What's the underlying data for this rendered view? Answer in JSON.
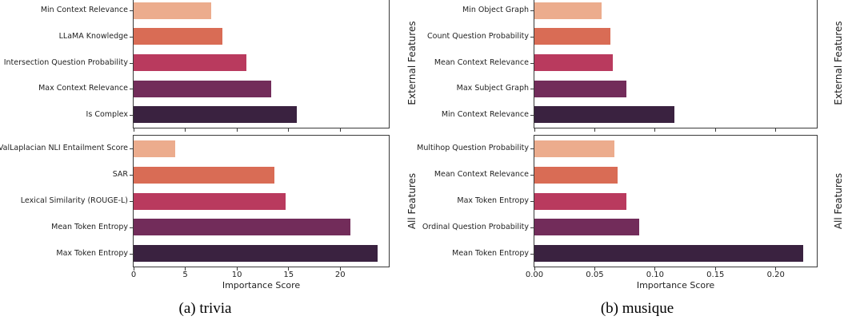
{
  "palette": [
    "#ECAC8D",
    "#D96C55",
    "#B93A5E",
    "#722C5A",
    "#3A2240"
  ],
  "spine_color": "#3a3a3a",
  "captions": {
    "a": "(a) trivia",
    "b": "(b) musique"
  },
  "chart_data": [
    {
      "type": "bar",
      "orientation": "horizontal",
      "figure": "trivia",
      "panel": "External Features",
      "right_label": "External Features",
      "categories": [
        "Min Context Relevance",
        "LLaMA Knowledge",
        "Intersection Question Probability",
        "Max Context Relevance",
        "Is Complex"
      ],
      "values": [
        7.5,
        8.6,
        10.9,
        13.3,
        15.8
      ],
      "xlim": [
        0,
        24.7
      ],
      "xticks": [
        0,
        5,
        10,
        15,
        20
      ],
      "xtick_labels": [
        "0",
        "5",
        "10",
        "15",
        "20"
      ],
      "show_xtick_labels": false,
      "xlabel": "",
      "grid": false,
      "legend": "none"
    },
    {
      "type": "bar",
      "orientation": "horizontal",
      "figure": "trivia",
      "panel": "All Features",
      "right_label": "All Features",
      "categories": [
        "EigValLaplacian NLI Entailment Score",
        "SAR",
        "Lexical Similarity (ROUGE-L)",
        "Mean Token Entropy",
        "Max Token Entropy"
      ],
      "values": [
        4.0,
        13.6,
        14.7,
        21.0,
        23.6
      ],
      "xlim": [
        0,
        24.7
      ],
      "xticks": [
        0,
        5,
        10,
        15,
        20
      ],
      "xtick_labels": [
        "0",
        "5",
        "10",
        "15",
        "20"
      ],
      "show_xtick_labels": true,
      "xlabel": "Importance Score",
      "grid": false,
      "legend": "none"
    },
    {
      "type": "bar",
      "orientation": "horizontal",
      "figure": "musique",
      "panel": "External Features",
      "right_label": "External Features",
      "categories": [
        "Min Object Graph",
        "Count Question Probability",
        "Mean Context Relevance",
        "Max Subject Graph",
        "Min Context Relevance"
      ],
      "values": [
        0.056,
        0.063,
        0.065,
        0.076,
        0.116
      ],
      "xlim": [
        0,
        0.234
      ],
      "xticks": [
        0,
        0.05,
        0.1,
        0.15,
        0.2
      ],
      "xtick_labels": [
        "0.00",
        "0.05",
        "0.10",
        "0.15",
        "0.20"
      ],
      "show_xtick_labels": false,
      "xlabel": "",
      "grid": false,
      "legend": "none"
    },
    {
      "type": "bar",
      "orientation": "horizontal",
      "figure": "musique",
      "panel": "All Features",
      "right_label": "All Features",
      "categories": [
        "Multihop Question Probability",
        "Mean Context Relevance",
        "Max Token Entropy",
        "Ordinal Question Probability",
        "Mean Token Entropy"
      ],
      "values": [
        0.066,
        0.069,
        0.076,
        0.087,
        0.223
      ],
      "xlim": [
        0,
        0.234
      ],
      "xticks": [
        0,
        0.05,
        0.1,
        0.15,
        0.2
      ],
      "xtick_labels": [
        "0.00",
        "0.05",
        "0.10",
        "0.15",
        "0.20"
      ],
      "show_xtick_labels": true,
      "xlabel": "Importance Score",
      "grid": false,
      "legend": "none"
    }
  ]
}
